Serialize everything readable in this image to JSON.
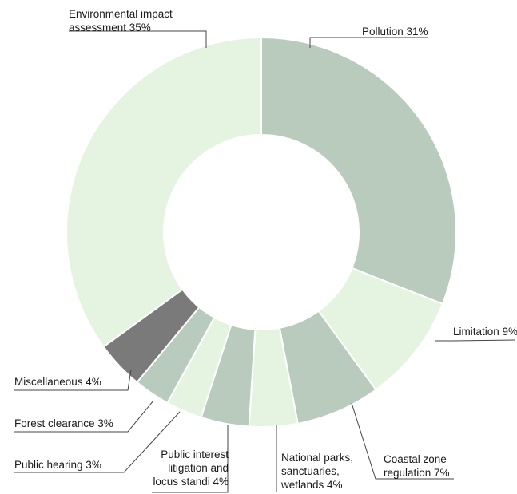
{
  "chart_data": {
    "type": "pie",
    "variant": "donut",
    "title": "",
    "legend": "none",
    "slices": [
      {
        "label": "Pollution",
        "value": 31,
        "value_label": "31%",
        "color": "#b8cbbc"
      },
      {
        "label": "Limitation",
        "value": 9,
        "value_label": "9%",
        "color": "#e4f4e1"
      },
      {
        "label": "Coastal zone regulation",
        "value": 7,
        "value_label": "7%",
        "color": "#b8cbbc"
      },
      {
        "label": "National parks, sanctuaries, wetlands",
        "value": 4,
        "value_label": "4%",
        "color": "#e4f4e1"
      },
      {
        "label": "Public interest litigation and locus standi",
        "value": 4,
        "value_label": "4%",
        "color": "#b8cbbc"
      },
      {
        "label": "Public hearing",
        "value": 3,
        "value_label": "3%",
        "color": "#e4f4e1"
      },
      {
        "label": "Forest clearance",
        "value": 3,
        "value_label": "3%",
        "color": "#b8cbbc"
      },
      {
        "label": "Miscellaneous",
        "value": 4,
        "value_label": "4%",
        "color": "#7a7a7a"
      },
      {
        "label": "Environmental impact assessment",
        "value": 35,
        "value_label": "35%",
        "color": "#e4f4e1"
      }
    ]
  }
}
